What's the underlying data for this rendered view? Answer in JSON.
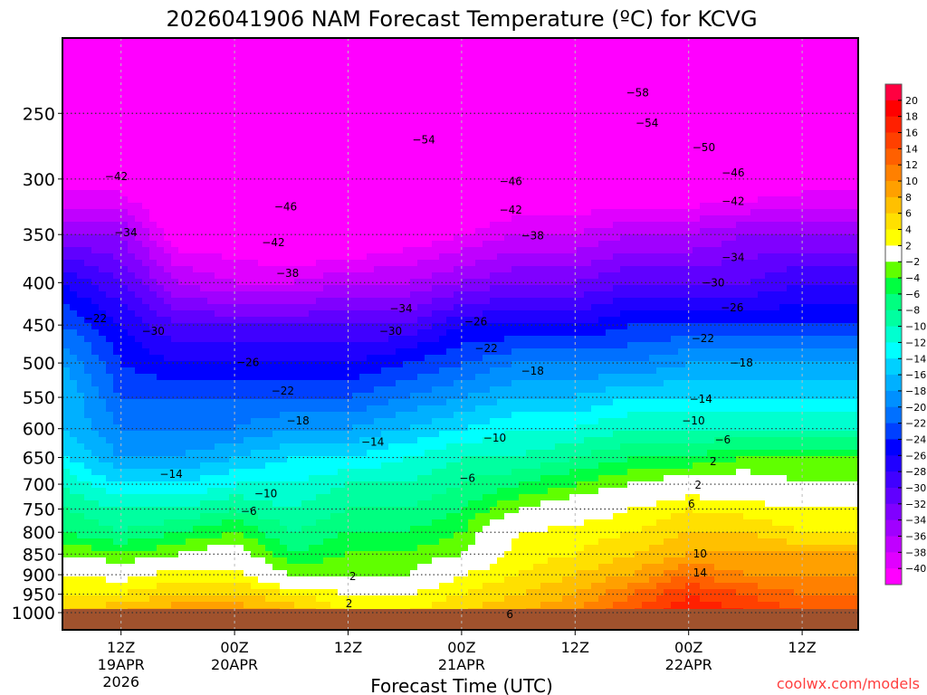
{
  "chart_data": {
    "type": "heatmap",
    "title": "2026041906 NAM Forecast Temperature (ºC) for KCVG",
    "xlabel": "Forecast Time (UTC)",
    "ylabel": "",
    "watermark": "coolwx.com/models",
    "x_unit": "forecast hour",
    "xlim": [
      0,
      84
    ],
    "ylim_hpa": [
      1050,
      200
    ],
    "y_ticks": [
      250,
      300,
      350,
      400,
      450,
      500,
      550,
      600,
      650,
      700,
      750,
      800,
      850,
      900,
      950,
      1000
    ],
    "x_ticks": [
      {
        "hour": 6,
        "lines": [
          "12Z",
          "19APR",
          "2026"
        ]
      },
      {
        "hour": 18,
        "lines": [
          "00Z",
          "20APR"
        ]
      },
      {
        "hour": 30,
        "lines": [
          "12Z"
        ]
      },
      {
        "hour": 42,
        "lines": [
          "00Z",
          "21APR"
        ]
      },
      {
        "hour": 54,
        "lines": [
          "12Z"
        ]
      },
      {
        "hour": 66,
        "lines": [
          "00Z",
          "22APR"
        ]
      },
      {
        "hour": 78,
        "lines": [
          "12Z"
        ]
      }
    ],
    "ground_color": "#a0522d",
    "times": [
      0,
      6,
      12,
      18,
      24,
      30,
      36,
      42,
      48,
      54,
      60,
      66,
      72,
      78,
      84
    ],
    "pressures": [
      1000,
      950,
      900,
      850,
      800,
      750,
      700,
      650,
      600,
      550,
      500,
      450,
      400,
      350,
      300,
      250,
      200
    ],
    "values": [
      [
        6,
        4,
        2,
        -2,
        -6,
        -8,
        -10,
        -14,
        -16,
        -16,
        -18,
        -22,
        -26,
        -34,
        -42,
        -50,
        -56
      ],
      [
        8,
        4,
        1,
        -4,
        -8,
        -10,
        -14,
        -18,
        -20,
        -22,
        -24,
        -26,
        -30,
        -34,
        -42,
        -50,
        -56
      ],
      [
        10,
        6,
        3,
        -2,
        -6,
        -10,
        -14,
        -18,
        -20,
        -22,
        -26,
        -30,
        -36,
        -42,
        -46,
        -52,
        -56
      ],
      [
        10,
        6,
        3,
        0,
        -4,
        -8,
        -12,
        -16,
        -20,
        -22,
        -26,
        -30,
        -38,
        -42,
        -48,
        -54,
        -58
      ],
      [
        8,
        4,
        -2,
        -6,
        -8,
        -10,
        -12,
        -14,
        -18,
        -22,
        -26,
        -30,
        -38,
        -44,
        -50,
        -54,
        -58
      ],
      [
        4,
        2,
        -2,
        -4,
        -6,
        -8,
        -10,
        -14,
        -18,
        -22,
        -26,
        -30,
        -36,
        -44,
        -50,
        -54,
        -58
      ],
      [
        4,
        2,
        -2,
        -4,
        -6,
        -8,
        -10,
        -12,
        -16,
        -20,
        -24,
        -30,
        -36,
        -42,
        -48,
        -54,
        -58
      ],
      [
        6,
        4,
        2,
        -2,
        -4,
        -6,
        -8,
        -10,
        -14,
        -18,
        -22,
        -26,
        -34,
        -40,
        -46,
        -52,
        -56
      ],
      [
        8,
        6,
        4,
        3,
        2,
        -2,
        -6,
        -10,
        -12,
        -16,
        -20,
        -26,
        -32,
        -38,
        -44,
        -52,
        -56
      ],
      [
        10,
        8,
        6,
        4,
        3,
        0,
        -4,
        -8,
        -12,
        -16,
        -20,
        -26,
        -32,
        -38,
        -44,
        -52,
        -58
      ],
      [
        14,
        12,
        8,
        6,
        4,
        2,
        -2,
        -6,
        -10,
        -14,
        -20,
        -24,
        -30,
        -36,
        -44,
        -52,
        -58
      ],
      [
        18,
        16,
        12,
        8,
        6,
        4,
        0,
        -6,
        -10,
        -14,
        -18,
        -24,
        -30,
        -36,
        -44,
        -50,
        -56
      ],
      [
        16,
        14,
        10,
        8,
        6,
        3,
        0,
        -4,
        -10,
        -14,
        -18,
        -24,
        -30,
        -34,
        -44,
        -50,
        -56
      ],
      [
        14,
        12,
        10,
        8,
        4,
        2,
        -2,
        -4,
        -10,
        -14,
        -18,
        -24,
        -28,
        -34,
        -42,
        -50,
        -56
      ],
      [
        14,
        12,
        10,
        8,
        4,
        2,
        -2,
        -4,
        -10,
        -14,
        -18,
        -24,
        -28,
        -34,
        -42,
        -50,
        -56
      ]
    ],
    "colorbar": {
      "labels": [
        "20",
        "18",
        "16",
        "14",
        "12",
        "10",
        "8",
        "6",
        "4",
        "2",
        "-2",
        "-4",
        "-6",
        "-8",
        "-10",
        "-12",
        "-14",
        "-16",
        "-18",
        "-20",
        "-22",
        "-24",
        "-26",
        "-28",
        "-30",
        "-32",
        "-34",
        "-36",
        "-38",
        "-40"
      ],
      "boundaries": [
        20,
        18,
        16,
        14,
        12,
        10,
        8,
        6,
        4,
        2,
        -2,
        -4,
        -6,
        -8,
        -10,
        -12,
        -14,
        -16,
        -18,
        -20,
        -22,
        -24,
        -26,
        -28,
        -30,
        -32,
        -34,
        -36,
        -38,
        -40
      ],
      "colors": [
        "#ff0040",
        "#ff0000",
        "#ff2000",
        "#ff4000",
        "#ff6000",
        "#ff8000",
        "#ffa000",
        "#ffc000",
        "#ffe000",
        "#ffff00",
        "#ffffff",
        "#60ff00",
        "#00ff40",
        "#00ff80",
        "#00ffa0",
        "#00ffd0",
        "#00ffff",
        "#00d0ff",
        "#00b0ff",
        "#0090ff",
        "#0070ff",
        "#0040ff",
        "#0000ff",
        "#2000ff",
        "#4000ff",
        "#6000ff",
        "#8000ff",
        "#a000ff",
        "#c000ff",
        "#e000ff",
        "#ff00ff"
      ]
    },
    "contour_labels": [
      {
        "hour": 60.6,
        "hpa": 236,
        "text": "-58"
      },
      {
        "hour": 61.6,
        "hpa": 257,
        "text": "-54"
      },
      {
        "hour": 38,
        "hpa": 269,
        "text": "-54"
      },
      {
        "hour": 67.6,
        "hpa": 275,
        "text": "-50"
      },
      {
        "hour": 70.7,
        "hpa": 295,
        "text": "-46"
      },
      {
        "hour": 47.2,
        "hpa": 302,
        "text": "-46"
      },
      {
        "hour": 5.5,
        "hpa": 298,
        "text": "-42"
      },
      {
        "hour": 70.7,
        "hpa": 319,
        "text": "-42"
      },
      {
        "hour": 47.2,
        "hpa": 327,
        "text": "-42"
      },
      {
        "hour": 23.4,
        "hpa": 324,
        "text": "-46"
      },
      {
        "hour": 49.5,
        "hpa": 351,
        "text": "-38"
      },
      {
        "hour": 22.1,
        "hpa": 358,
        "text": "-42"
      },
      {
        "hour": 6.5,
        "hpa": 348,
        "text": "-34"
      },
      {
        "hour": 70.7,
        "hpa": 373,
        "text": "-34"
      },
      {
        "hour": 23.6,
        "hpa": 390,
        "text": "-38"
      },
      {
        "hour": 68.6,
        "hpa": 400,
        "text": "-30"
      },
      {
        "hour": 35.6,
        "hpa": 430,
        "text": "-34"
      },
      {
        "hour": 70.6,
        "hpa": 429,
        "text": "-26"
      },
      {
        "hour": 3.3,
        "hpa": 442,
        "text": "-22"
      },
      {
        "hour": 9.4,
        "hpa": 458,
        "text": "-30"
      },
      {
        "hour": 34.5,
        "hpa": 458,
        "text": "-30"
      },
      {
        "hour": 43.5,
        "hpa": 446,
        "text": "-26"
      },
      {
        "hour": 67.5,
        "hpa": 467,
        "text": "-22"
      },
      {
        "hour": 44.6,
        "hpa": 480,
        "text": "-22"
      },
      {
        "hour": 19.4,
        "hpa": 499,
        "text": "-26"
      },
      {
        "hour": 71.6,
        "hpa": 500,
        "text": "-18"
      },
      {
        "hour": 49.5,
        "hpa": 511,
        "text": "-18"
      },
      {
        "hour": 23.1,
        "hpa": 540,
        "text": "-22"
      },
      {
        "hour": 67.3,
        "hpa": 553,
        "text": "-14"
      },
      {
        "hour": 24.7,
        "hpa": 587,
        "text": "-18"
      },
      {
        "hour": 66.5,
        "hpa": 587,
        "text": "-10"
      },
      {
        "hour": 32.6,
        "hpa": 623,
        "text": "-14"
      },
      {
        "hour": 45.5,
        "hpa": 616,
        "text": "-10"
      },
      {
        "hour": 69.6,
        "hpa": 619,
        "text": "-6"
      },
      {
        "hour": 11.3,
        "hpa": 681,
        "text": "-14"
      },
      {
        "hour": 42.6,
        "hpa": 689,
        "text": "-6"
      },
      {
        "hour": 68.6,
        "hpa": 657,
        "text": "2"
      },
      {
        "hour": 21.3,
        "hpa": 719,
        "text": "-10"
      },
      {
        "hour": 67,
        "hpa": 702,
        "text": "2"
      },
      {
        "hour": 19.5,
        "hpa": 755,
        "text": "-6"
      },
      {
        "hour": 66.3,
        "hpa": 740,
        "text": "6"
      },
      {
        "hour": 67.2,
        "hpa": 849,
        "text": "10"
      },
      {
        "hour": 30.5,
        "hpa": 904,
        "text": "2"
      },
      {
        "hour": 67.2,
        "hpa": 895,
        "text": "14"
      },
      {
        "hour": 47.1,
        "hpa": 1005,
        "text": "6"
      },
      {
        "hour": 30.1,
        "hpa": 975,
        "text": "2"
      }
    ]
  }
}
